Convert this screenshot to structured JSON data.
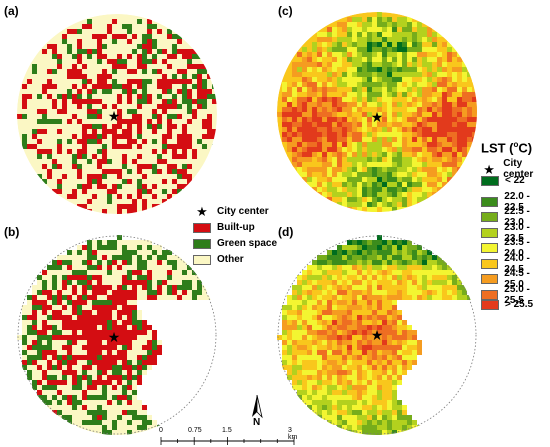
{
  "panels": [
    {
      "id": "a",
      "label": "(a)"
    },
    {
      "id": "b",
      "label": "(b)"
    },
    {
      "id": "c",
      "label": "(c)"
    },
    {
      "id": "d",
      "label": "(d)"
    }
  ],
  "landcover_legend": {
    "city_center": "City center",
    "items": [
      {
        "label": "Built-up",
        "color": "#d40d12"
      },
      {
        "label": "Green space",
        "color": "#2e7d1a"
      },
      {
        "label": "Other",
        "color": "#fbf7c4"
      }
    ]
  },
  "lst_legend": {
    "title": "LST (",
    "unit": "C)",
    "degree": "o",
    "city_center": "City center",
    "classes": [
      {
        "label": "< 22",
        "color": "#006d1e"
      },
      {
        "label": "22.0 - 22.5",
        "color": "#3b8c1c"
      },
      {
        "label": "22.5 - 23.0",
        "color": "#76ad1b"
      },
      {
        "label": "23.0 - 23.5",
        "color": "#b3d11e"
      },
      {
        "label": "23.5 - 24.0",
        "color": "#f3f531"
      },
      {
        "label": "24.0 - 24.5",
        "color": "#f9c71c"
      },
      {
        "label": "24.5 - 25.0",
        "color": "#f59c20"
      },
      {
        "label": "25.0 - 25.5",
        "color": "#ee6e22"
      },
      {
        "label": "> 25.5",
        "color": "#e23a1c"
      }
    ]
  },
  "scalebar": {
    "ticks": [
      "0",
      "0.75",
      "1.5",
      "3 km"
    ]
  },
  "north_arrow": {
    "label": "N"
  }
}
